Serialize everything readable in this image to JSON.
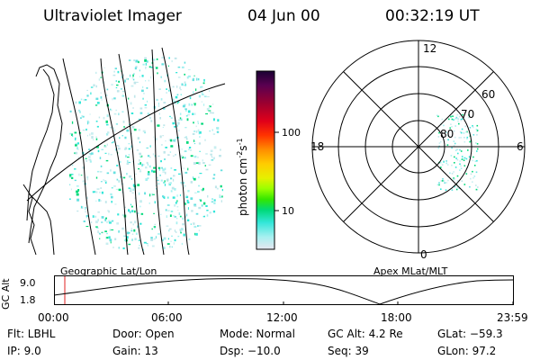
{
  "header": {
    "instrument": "Ultraviolet Imager",
    "date": "04 Jun 00",
    "time": "00:32:19 UT"
  },
  "colorbar": {
    "unit_label": "photon cm",
    "unit_sup1": "-2",
    "unit_mid": "s",
    "unit_sup2": "-1",
    "ticks": [
      "100",
      "10"
    ],
    "colors": [
      "#1a0033",
      "#5a0050",
      "#9b0030",
      "#e0001a",
      "#ff3300",
      "#ff8c00",
      "#ffcc00",
      "#e6f000",
      "#9aff00",
      "#33e600",
      "#00d97a",
      "#33e6d9",
      "#a6f0f0",
      "#e6e6f0"
    ]
  },
  "polar_plot": {
    "lt_labels": {
      "top": "12",
      "left": "18",
      "right": "6",
      "bottom": "0"
    },
    "lat_labels": [
      "60",
      "70",
      "80"
    ]
  },
  "timeline": {
    "left_label": "Geographic Lat/Lon",
    "right_label": "Apex MLat/MLT",
    "axis_title": "GC Alt",
    "y_ticks": [
      "9.0",
      "1.8"
    ],
    "x_ticks": [
      "00:00",
      "06:00",
      "12:00",
      "18:00",
      "23:59"
    ]
  },
  "info": {
    "flt": "Flt: LBHL",
    "ip": "IP:  9.0",
    "door": "Door: Open",
    "gain": "Gain: 13",
    "mode": "Mode: Normal",
    "dsp": "Dsp:  −10.0",
    "gc_alt": "GC Alt: 4.2 Re",
    "seq": "Seq: 39",
    "glat": "GLat: −59.3",
    "glon": "GLon:  97.2"
  }
}
